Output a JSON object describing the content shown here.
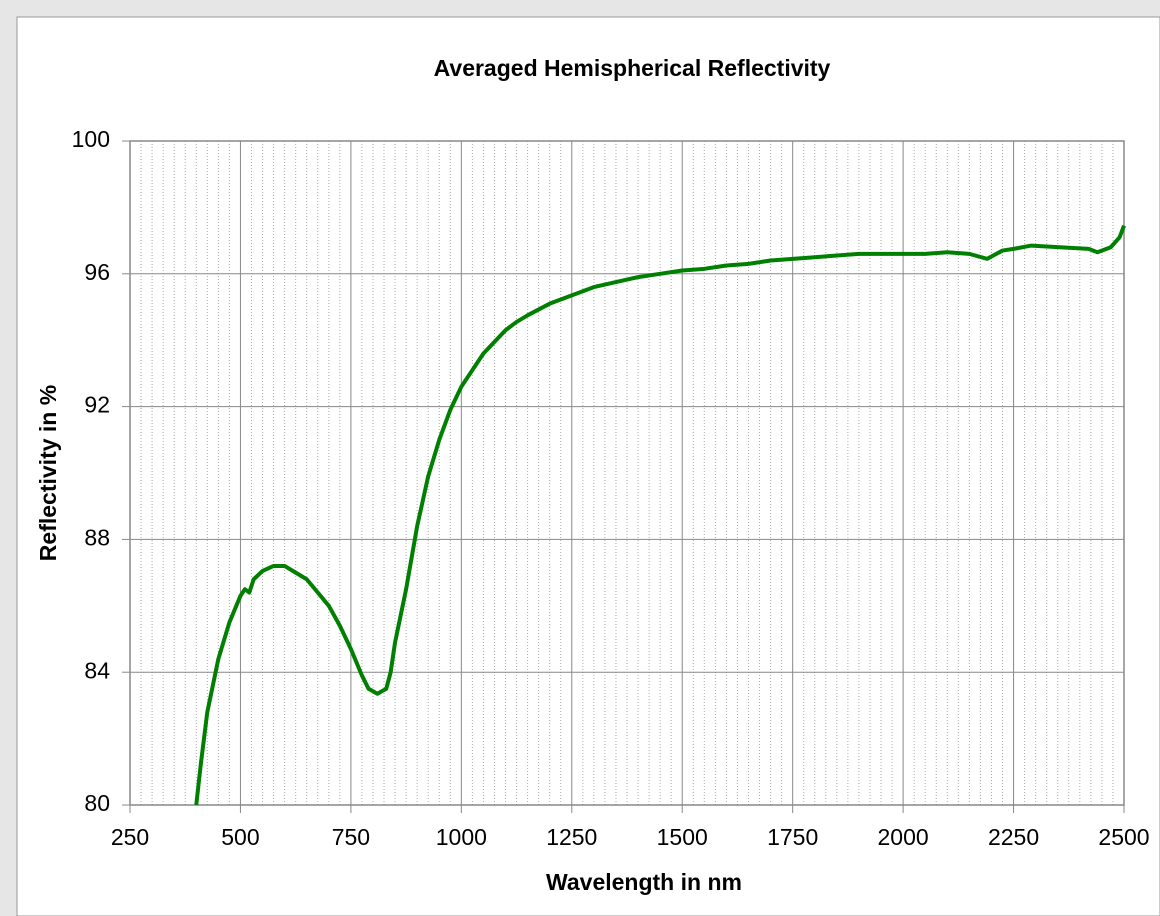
{
  "chart_data": {
    "type": "line",
    "title": "Averaged Hemispherical Reflectivity",
    "xlabel": "Wavelength in nm",
    "ylabel": "Reflectivity in %",
    "x": [
      400,
      410,
      425,
      450,
      475,
      500,
      510,
      520,
      530,
      550,
      575,
      600,
      625,
      650,
      675,
      700,
      725,
      750,
      775,
      790,
      810,
      830,
      840,
      850,
      875,
      900,
      925,
      950,
      975,
      1000,
      1025,
      1050,
      1075,
      1100,
      1125,
      1150,
      1200,
      1250,
      1300,
      1350,
      1400,
      1450,
      1500,
      1550,
      1600,
      1650,
      1700,
      1750,
      1800,
      1850,
      1900,
      1950,
      2000,
      2050,
      2100,
      2150,
      2190,
      2225,
      2250,
      2290,
      2420,
      2440,
      2470,
      2490,
      2500
    ],
    "series": [
      {
        "name": "Reflectivity",
        "color": "#008000",
        "values": [
          80,
          81.2,
          82.8,
          84.4,
          85.5,
          86.3,
          86.5,
          86.4,
          86.8,
          87.05,
          87.2,
          87.2,
          87.0,
          86.8,
          86.4,
          86.0,
          85.4,
          84.7,
          83.9,
          83.5,
          83.35,
          83.5,
          84.0,
          84.9,
          86.5,
          88.4,
          89.9,
          91.0,
          91.9,
          92.6,
          93.1,
          93.6,
          93.95,
          94.3,
          94.55,
          94.75,
          95.1,
          95.35,
          95.6,
          95.75,
          95.9,
          96.0,
          96.1,
          96.15,
          96.25,
          96.3,
          96.4,
          96.45,
          96.5,
          96.55,
          96.6,
          96.6,
          96.6,
          96.6,
          96.65,
          96.6,
          96.45,
          96.7,
          96.75,
          96.85,
          96.75,
          96.65,
          96.8,
          97.1,
          97.45
        ]
      }
    ],
    "xlim": [
      250,
      2500
    ],
    "xticks": [
      250,
      500,
      750,
      1000,
      1250,
      1500,
      1750,
      2000,
      2250,
      2500
    ],
    "ylim": [
      80,
      100
    ],
    "yticks": [
      80,
      84,
      88,
      92,
      96,
      100
    ],
    "grid": true
  }
}
